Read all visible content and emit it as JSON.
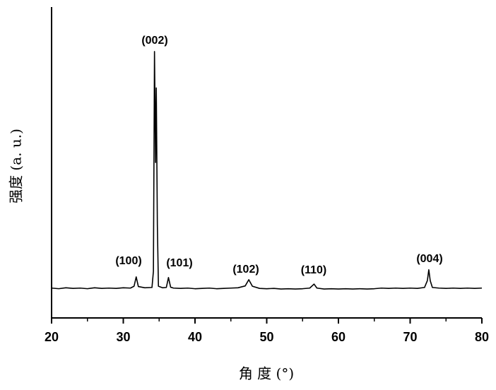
{
  "chart_data": {
    "type": "line",
    "xlabel": "角 度 (°)",
    "ylabel": "强度 (a. u.)",
    "x": [
      20,
      21,
      22,
      23,
      24,
      25,
      26,
      27,
      28,
      29,
      30,
      31,
      31.5,
      31.8,
      32.1,
      33,
      34,
      34.2,
      34.35,
      34.5,
      34.6,
      34.75,
      34.9,
      35.5,
      36,
      36.3,
      36.6,
      37,
      38,
      39,
      40,
      41,
      42,
      43,
      44,
      45,
      46,
      47,
      47.5,
      48,
      49,
      50,
      51,
      52,
      53,
      54,
      55,
      56,
      56.6,
      57,
      58,
      59,
      60,
      61,
      62,
      63,
      64,
      65,
      66,
      67,
      68,
      69,
      70,
      71,
      72,
      72.4,
      72.6,
      72.8,
      73.1,
      74,
      75,
      76,
      77,
      78,
      79,
      80
    ],
    "series": [
      {
        "color": "#000000",
        "values": [
          9.6,
          9.4,
          9.7,
          9.5,
          9.6,
          9.4,
          9.7,
          9.5,
          9.6,
          9.5,
          9.7,
          9.6,
          10.2,
          13.2,
          10.1,
          9.7,
          9.8,
          15,
          85.7,
          50,
          74,
          30,
          10.2,
          9.7,
          9.8,
          13,
          9.9,
          9.6,
          9.5,
          9.6,
          9.4,
          9.5,
          9.6,
          9.4,
          9.5,
          9.6,
          9.7,
          10.3,
          12.3,
          10.2,
          9.5,
          9.4,
          9.5,
          9.3,
          9.4,
          9.3,
          9.4,
          9.6,
          10.9,
          9.6,
          9.3,
          9.4,
          9.3,
          9.4,
          9.3,
          9.4,
          9.3,
          9.4,
          9.6,
          9.5,
          9.6,
          9.5,
          9.6,
          9.5,
          9.8,
          12,
          15.5,
          12,
          9.8,
          9.6,
          9.5,
          9.6,
          9.5,
          9.6,
          9.5,
          9.6
        ]
      }
    ],
    "annotations": [
      "(100)",
      "(002)",
      "(101)",
      "(102)",
      "(110)",
      "(004)"
    ],
    "xlim": [
      20,
      80
    ],
    "xticks": [
      20,
      30,
      40,
      50,
      60,
      70,
      80
    ],
    "ylim": [
      0,
      100
    ]
  }
}
